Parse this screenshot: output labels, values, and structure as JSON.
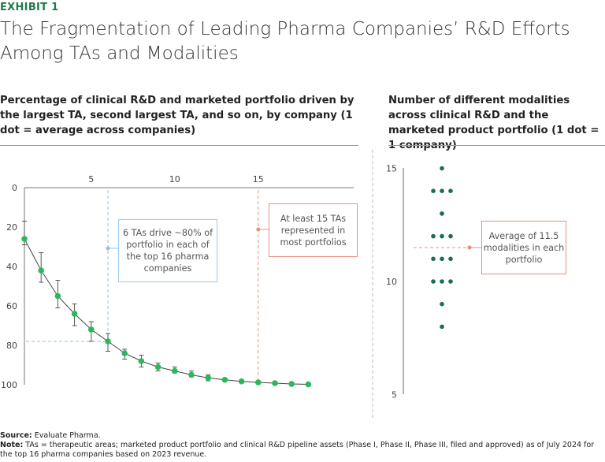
{
  "header": {
    "exhibit": "EXHIBIT 1",
    "title": "The Fragmentation of Leading Pharma Companies’ R&D Efforts Among TAs and Modalities"
  },
  "left_panel": {
    "subtitle": "Percentage of clinical R&D and marketed portfolio driven by the largest TA, second largest TA, and so on,  by company",
    "subtitle_note": "(1 dot = average across companies)",
    "callout_blue": "6 TAs drive ~80% of portfolio in each of the top 16 pharma companies",
    "callout_red": "At least 15 TAs represented in most portfolios"
  },
  "right_panel": {
    "subtitle": "Number of different modalities across clinical R&D and the marketed product portfolio",
    "subtitle_note": "(1 dot = 1 company)",
    "callout": "Average of 11.5 modalities in each portfolio"
  },
  "footer": {
    "source_label": "Source:",
    "source": "Evaluate Pharma.",
    "note_label": "Note:",
    "note": "TAs = therapeutic areas; marketed product portfolio and clinical R&D pipeline assets (Phase I, Phase II, Phase III, filed and approved) as of July 2024 for the top 16 pharma companies based on 2023 revenue."
  },
  "colors": {
    "green_dot": "#2bb75c",
    "dark_green_dot": "#1a6e4e",
    "blue_ref": "#8ec3e6",
    "red_ref": "#e8907f",
    "exhibit": "#1f7a4d"
  },
  "chart_data": [
    {
      "type": "line",
      "x": [
        1,
        2,
        3,
        4,
        5,
        6,
        7,
        8,
        9,
        10,
        11,
        12,
        13,
        14,
        15,
        16,
        17,
        18
      ],
      "y": [
        26,
        42,
        55,
        64,
        72,
        78,
        84,
        88,
        91,
        93,
        95,
        96.5,
        97.5,
        98.3,
        98.8,
        99.2,
        99.6,
        99.8
      ],
      "error_low": [
        17,
        33,
        47,
        59,
        68,
        74,
        82,
        85,
        89,
        91,
        93,
        95,
        null,
        null,
        null,
        null,
        null,
        null
      ],
      "error_high": [
        29,
        48,
        61,
        70,
        78,
        83,
        87,
        91,
        93,
        94,
        96,
        98,
        null,
        null,
        null,
        null,
        null,
        null
      ],
      "xticks": [
        5,
        10,
        15
      ],
      "yticks": [
        0,
        20,
        40,
        60,
        80,
        100
      ],
      "xlim": [
        1,
        20
      ],
      "ylim": [
        0,
        100
      ],
      "y_inverted": true,
      "reference_lines": {
        "x": [
          6,
          15
        ],
        "y": [
          78
        ]
      }
    },
    {
      "type": "scatter",
      "values": [
        15,
        14,
        14,
        14,
        13,
        12,
        12,
        12,
        11,
        11,
        11,
        10,
        10,
        10,
        9,
        8
      ],
      "yticks": [
        5,
        10,
        15
      ],
      "ylim": [
        5,
        15
      ],
      "average": 11.5
    }
  ]
}
